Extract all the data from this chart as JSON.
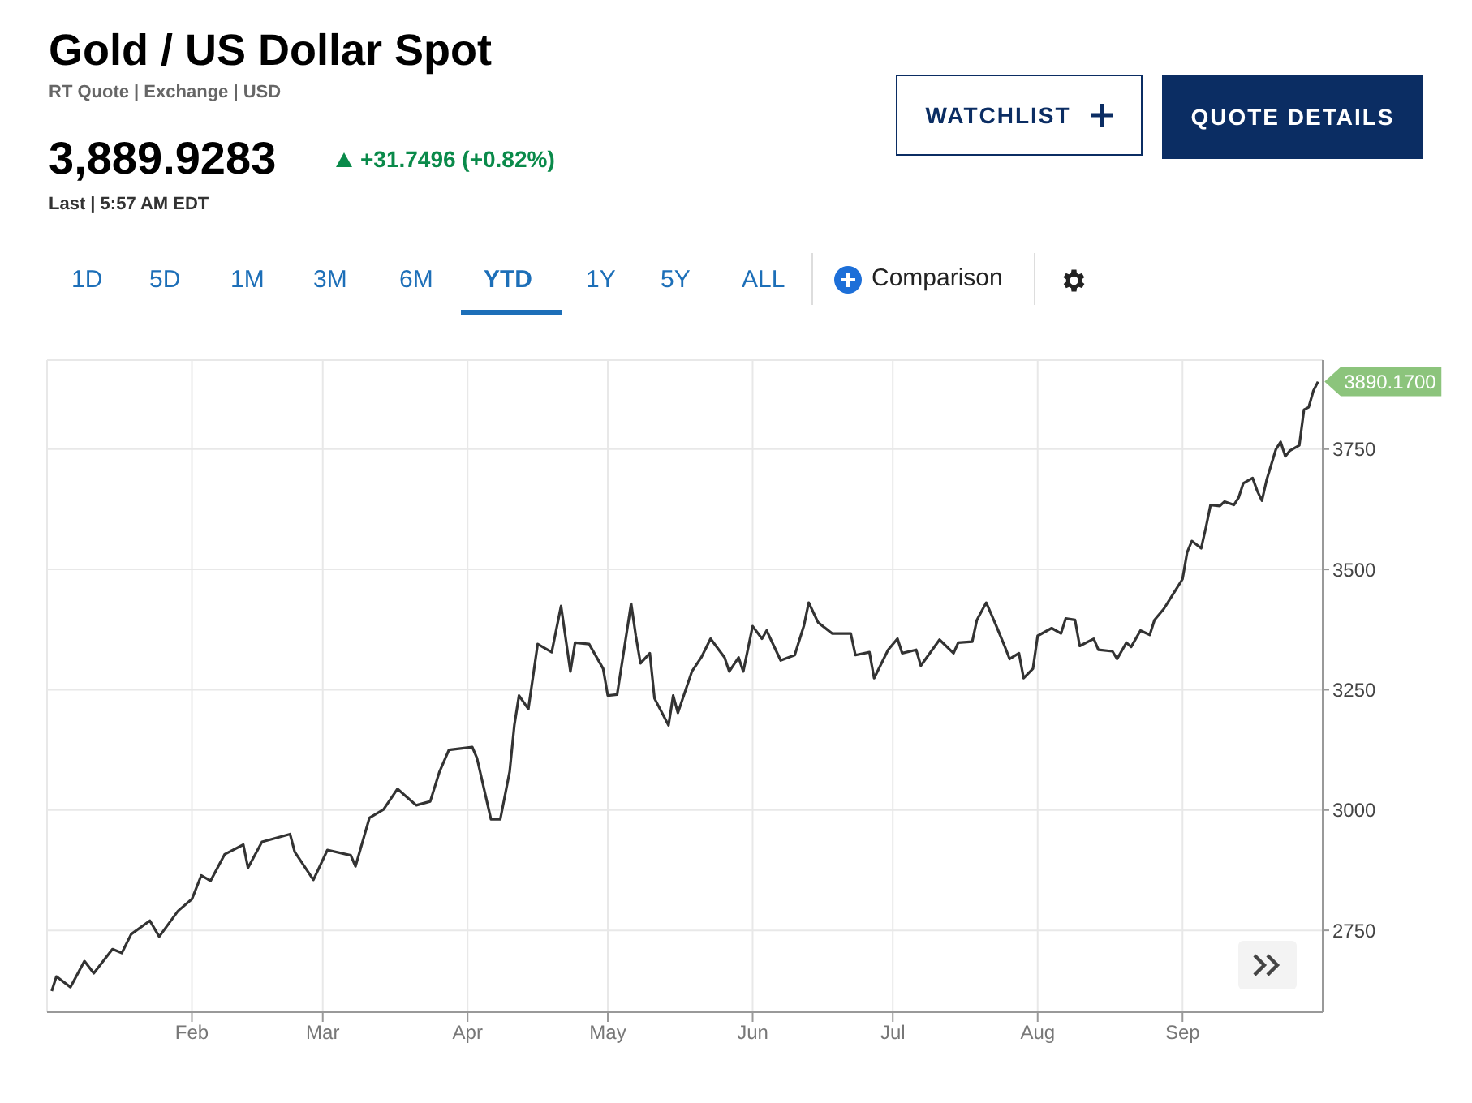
{
  "chart_data": {
    "type": "line",
    "title": "Gold / US Dollar Spot",
    "subtitle": "RT Quote | Exchange | USD",
    "annotations": [
      "3,889.9283",
      "+31.7496 (+0.82%)",
      "Last | 5:57 AM EDT",
      "WATCHLIST",
      "QUOTE DETAILS",
      "1D",
      "5D",
      "1M",
      "3M",
      "6M",
      "YTD",
      "1Y",
      "5Y",
      "ALL",
      "Comparison",
      {
        "text": "3890.1700",
        "x": "--09-30",
        "y": 3890.17
      }
    ],
    "x": [
      "--01-02",
      "--01-03",
      "--01-06",
      "--01-09",
      "--01-11",
      "--01-15",
      "--01-17",
      "--01-19",
      "--01-23",
      "--01-25",
      "--01-29",
      "--02-01",
      "--02-03",
      "--02-05",
      "--02-08",
      "--02-12",
      "--02-13",
      "--02-16",
      "--02-22",
      "--02-23",
      "--02-27",
      "--03-02",
      "--03-07",
      "--03-08",
      "--03-11",
      "--03-14",
      "--03-17",
      "--03-21",
      "--03-24",
      "--03-26",
      "--03-28",
      "--04-02",
      "--04-03",
      "--04-06",
      "--04-08",
      "--04-10",
      "--04-11",
      "--04-12",
      "--04-14",
      "--04-16",
      "--04-19",
      "--04-21",
      "--04-23",
      "--04-24",
      "--04-27",
      "--04-30",
      "--05-01",
      "--05-03",
      "--05-06",
      "--05-07",
      "--05-08",
      "--05-10",
      "--05-11",
      "--05-14",
      "--05-15",
      "--05-16",
      "--05-19",
      "--05-21",
      "--05-23",
      "--05-26",
      "--05-27",
      "--05-29",
      "--05-30",
      "--06-01",
      "--06-03",
      "--06-04",
      "--06-07",
      "--06-10",
      "--06-12",
      "--06-13",
      "--06-15",
      "--06-18",
      "--06-22",
      "--06-23",
      "--06-26",
      "--06-27",
      "--06-30",
      "--07-02",
      "--07-03",
      "--07-06",
      "--07-07",
      "--07-11",
      "--07-14",
      "--07-15",
      "--07-18",
      "--07-19",
      "--07-21",
      "--07-23",
      "--07-25",
      "--07-26",
      "--07-28",
      "--07-29",
      "--07-31",
      "--08-01",
      "--08-04",
      "--08-06",
      "--08-07",
      "--08-09",
      "--08-10",
      "--08-13",
      "--08-14",
      "--08-17",
      "--08-18",
      "--08-20",
      "--08-21",
      "--08-23",
      "--08-25",
      "--08-26",
      "--08-28",
      "--08-30",
      "--09-01",
      "--09-02",
      "--09-03",
      "--09-05",
      "--09-06",
      "--09-07",
      "--09-09",
      "--09-10",
      "--09-12",
      "--09-13",
      "--09-14",
      "--09-16",
      "--09-17",
      "--09-18",
      "--09-19",
      "--09-21",
      "--09-22",
      "--09-23",
      "--09-24",
      "--09-26",
      "--09-27",
      "--09-28",
      "--09-29",
      "--09-30"
    ],
    "series": [
      {
        "color": "#333333",
        "values": [
          2624,
          2654,
          2632,
          2686,
          2661,
          2711,
          2703,
          2742,
          2770,
          2737,
          2790,
          2815,
          2864,
          2853,
          2908,
          2928,
          2880,
          2934,
          2950,
          2913,
          2855,
          2917,
          2906,
          2883,
          2984,
          3001,
          3044,
          3010,
          3018,
          3080,
          3125,
          3131,
          3108,
          2981,
          2981,
          3080,
          3176,
          3238,
          3210,
          3345,
          3328,
          3424,
          3288,
          3348,
          3345,
          3294,
          3238,
          3240,
          3429,
          3362,
          3305,
          3326,
          3232,
          3176,
          3238,
          3202,
          3288,
          3317,
          3356,
          3317,
          3288,
          3317,
          3288,
          3382,
          3356,
          3373,
          3311,
          3322,
          3384,
          3431,
          3390,
          3367,
          3367,
          3322,
          3328,
          3274,
          3333,
          3356,
          3326,
          3333,
          3300,
          3354,
          3326,
          3348,
          3350,
          3395,
          3431,
          3386,
          3339,
          3314,
          3326,
          3274,
          3294,
          3362,
          3378,
          3367,
          3398,
          3395,
          3341,
          3356,
          3333,
          3330,
          3314,
          3348,
          3339,
          3373,
          3364,
          3395,
          3418,
          3449,
          3480,
          3536,
          3559,
          3544,
          3587,
          3634,
          3632,
          3641,
          3634,
          3649,
          3679,
          3690,
          3663,
          3643,
          3686,
          3750,
          3765,
          3735,
          3747,
          3758,
          3832,
          3837,
          3871,
          3890.17
        ]
      }
    ],
    "xlim": [
      "--01-01",
      "--10-01"
    ],
    "xticks": [
      {
        "value": "--02-01",
        "label": "Feb"
      },
      {
        "value": "--03-01",
        "label": "Mar"
      },
      {
        "value": "--04-01",
        "label": "Apr"
      },
      {
        "value": "--05-01",
        "label": "May"
      },
      {
        "value": "--06-01",
        "label": "Jun"
      },
      {
        "value": "--07-01",
        "label": "Jul"
      },
      {
        "value": "--08-01",
        "label": "Aug"
      },
      {
        "value": "--09-01",
        "label": "Sep"
      }
    ],
    "ylim": [
      2580,
      3935
    ],
    "yticks": [
      2750,
      3000,
      3250,
      3500,
      3750
    ],
    "grid": true,
    "legend": false,
    "marker": "none",
    "line_style": "solid"
  }
}
